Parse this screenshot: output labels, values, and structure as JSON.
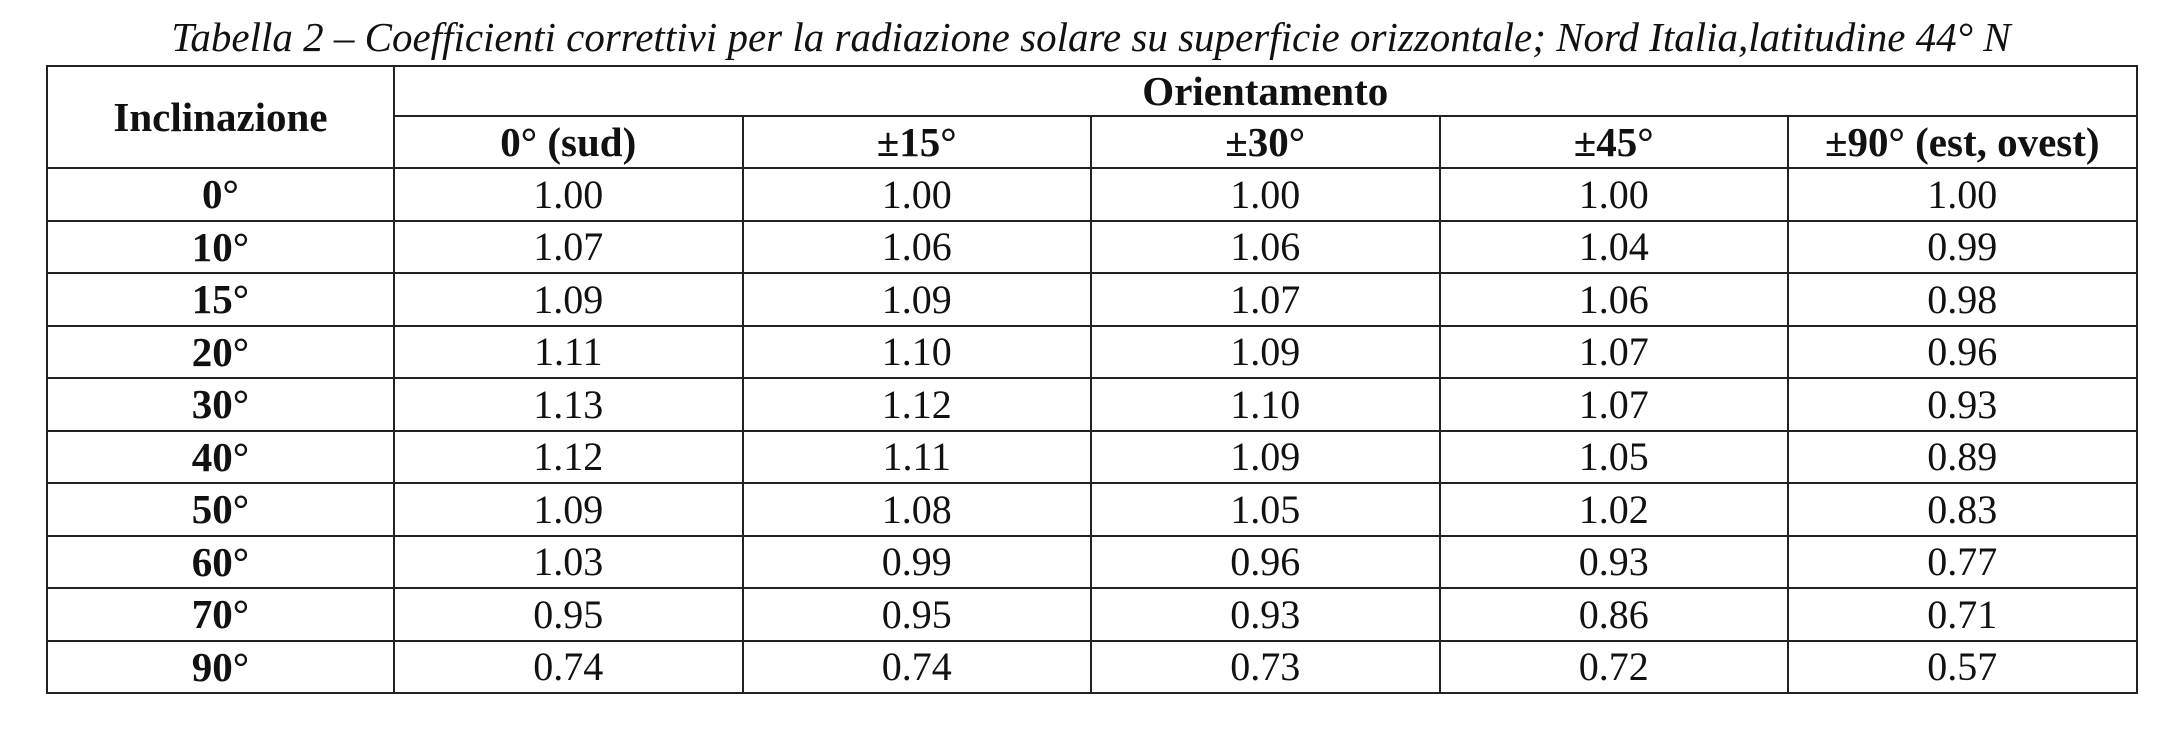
{
  "caption": "Tabella 2 – Coefficienti correttivi per la radiazione solare su superficie orizzontale; Nord Italia,latitudine 44° N",
  "table": {
    "row_header_label": "Inclinazione",
    "group_header": "Orientamento",
    "columns": [
      "0° (sud)",
      "±15°",
      "±30°",
      "±45°",
      "±90° (est, ovest)"
    ],
    "rows": [
      {
        "label": "0°",
        "values": [
          "1.00",
          "1.00",
          "1.00",
          "1.00",
          "1.00"
        ]
      },
      {
        "label": "10°",
        "values": [
          "1.07",
          "1.06",
          "1.06",
          "1.04",
          "0.99"
        ]
      },
      {
        "label": "15°",
        "values": [
          "1.09",
          "1.09",
          "1.07",
          "1.06",
          "0.98"
        ]
      },
      {
        "label": "20°",
        "values": [
          "1.11",
          "1.10",
          "1.09",
          "1.07",
          "0.96"
        ]
      },
      {
        "label": "30°",
        "values": [
          "1.13",
          "1.12",
          "1.10",
          "1.07",
          "0.93"
        ]
      },
      {
        "label": "40°",
        "values": [
          "1.12",
          "1.11",
          "1.09",
          "1.05",
          "0.89"
        ]
      },
      {
        "label": "50°",
        "values": [
          "1.09",
          "1.08",
          "1.05",
          "1.02",
          "0.83"
        ]
      },
      {
        "label": "60°",
        "values": [
          "1.03",
          "0.99",
          "0.96",
          "0.93",
          "0.77"
        ]
      },
      {
        "label": "70°",
        "values": [
          "0.95",
          "0.95",
          "0.93",
          "0.86",
          "0.71"
        ]
      },
      {
        "label": "90°",
        "values": [
          "0.74",
          "0.74",
          "0.73",
          "0.72",
          "0.57"
        ]
      }
    ]
  }
}
